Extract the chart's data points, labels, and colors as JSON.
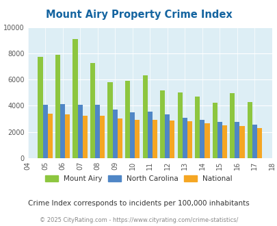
{
  "title": "Mount Airy Property Crime Index",
  "years": [
    2004,
    2005,
    2006,
    2007,
    2008,
    2009,
    2010,
    2011,
    2012,
    2013,
    2014,
    2015,
    2016,
    2017,
    2018
  ],
  "mount_airy": [
    null,
    7750,
    7900,
    9100,
    7250,
    5800,
    5900,
    6300,
    5150,
    5000,
    4700,
    4250,
    4950,
    4300,
    null
  ],
  "north_carolina": [
    null,
    4050,
    4150,
    4100,
    4050,
    3700,
    3500,
    3550,
    3350,
    3100,
    2900,
    2750,
    2750,
    2550,
    null
  ],
  "national": [
    null,
    3400,
    3350,
    3250,
    3250,
    3050,
    2950,
    2900,
    2850,
    2800,
    2650,
    2500,
    2450,
    2300,
    null
  ],
  "colors": {
    "mount_airy": "#8dc63f",
    "north_carolina": "#4f86c6",
    "national": "#f5a623"
  },
  "ylim": [
    0,
    10000
  ],
  "yticks": [
    0,
    2000,
    4000,
    6000,
    8000,
    10000
  ],
  "background_color": "#ddeef5",
  "subtitle": "Crime Index corresponds to incidents per 100,000 inhabitants",
  "footer": "© 2025 CityRating.com - https://www.cityrating.com/crime-statistics/",
  "title_color": "#1464a0",
  "subtitle_color": "#333333",
  "footer_color": "#888888"
}
